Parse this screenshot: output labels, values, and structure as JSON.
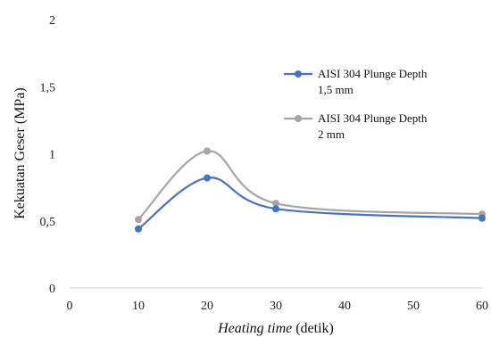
{
  "chart_data": {
    "type": "line",
    "xlabel_italic": "Heating time",
    "xlabel_rest": " (detik)",
    "ylabel": "Kekuatan Geser (MPa)",
    "xlim": [
      0,
      60
    ],
    "ylim": [
      0,
      2
    ],
    "x_ticks": [
      "0",
      "10",
      "20",
      "30",
      "40",
      "50",
      "60"
    ],
    "y_ticks": [
      "0",
      "0,5",
      "1",
      "1,5",
      "2"
    ],
    "grid": false,
    "legend_position": "top-right",
    "series": [
      {
        "name_line1": "AISI 304 Plunge Depth",
        "name_line2": "1,5 mm",
        "color": "#4472C4",
        "x": [
          10,
          20,
          30,
          60
        ],
        "y": [
          0.44,
          0.82,
          0.59,
          0.52
        ]
      },
      {
        "name_line1": "AISI 304 Plunge Depth",
        "name_line2": "2 mm",
        "color": "#A5A5A5",
        "x": [
          10,
          20,
          30,
          60
        ],
        "y": [
          0.51,
          1.02,
          0.63,
          0.55
        ]
      }
    ]
  }
}
